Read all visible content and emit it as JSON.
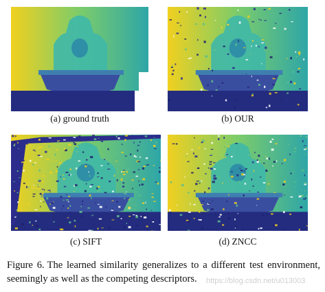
{
  "figure": {
    "panels": [
      {
        "id": "gt",
        "caption": "(a) ground truth",
        "noise": 0.0
      },
      {
        "id": "our",
        "caption": "(b) OUR",
        "noise": 0.18
      },
      {
        "id": "sift",
        "caption": "(c) SIFT",
        "noise": 0.45
      },
      {
        "id": "zncc",
        "caption": "(d) ZNCC",
        "noise": 0.28
      }
    ],
    "caption_label": "Figure 6.",
    "caption_text": "The learned similarity generalizes to a different test environment, seemingly as well as the competing descriptors.",
    "watermark": "https://blog.csdn.net/u013003"
  },
  "colormap": {
    "far": "#f0d020",
    "mid": "#3fb8a8",
    "near": "#2b2c8c",
    "floor": "#242c80"
  }
}
